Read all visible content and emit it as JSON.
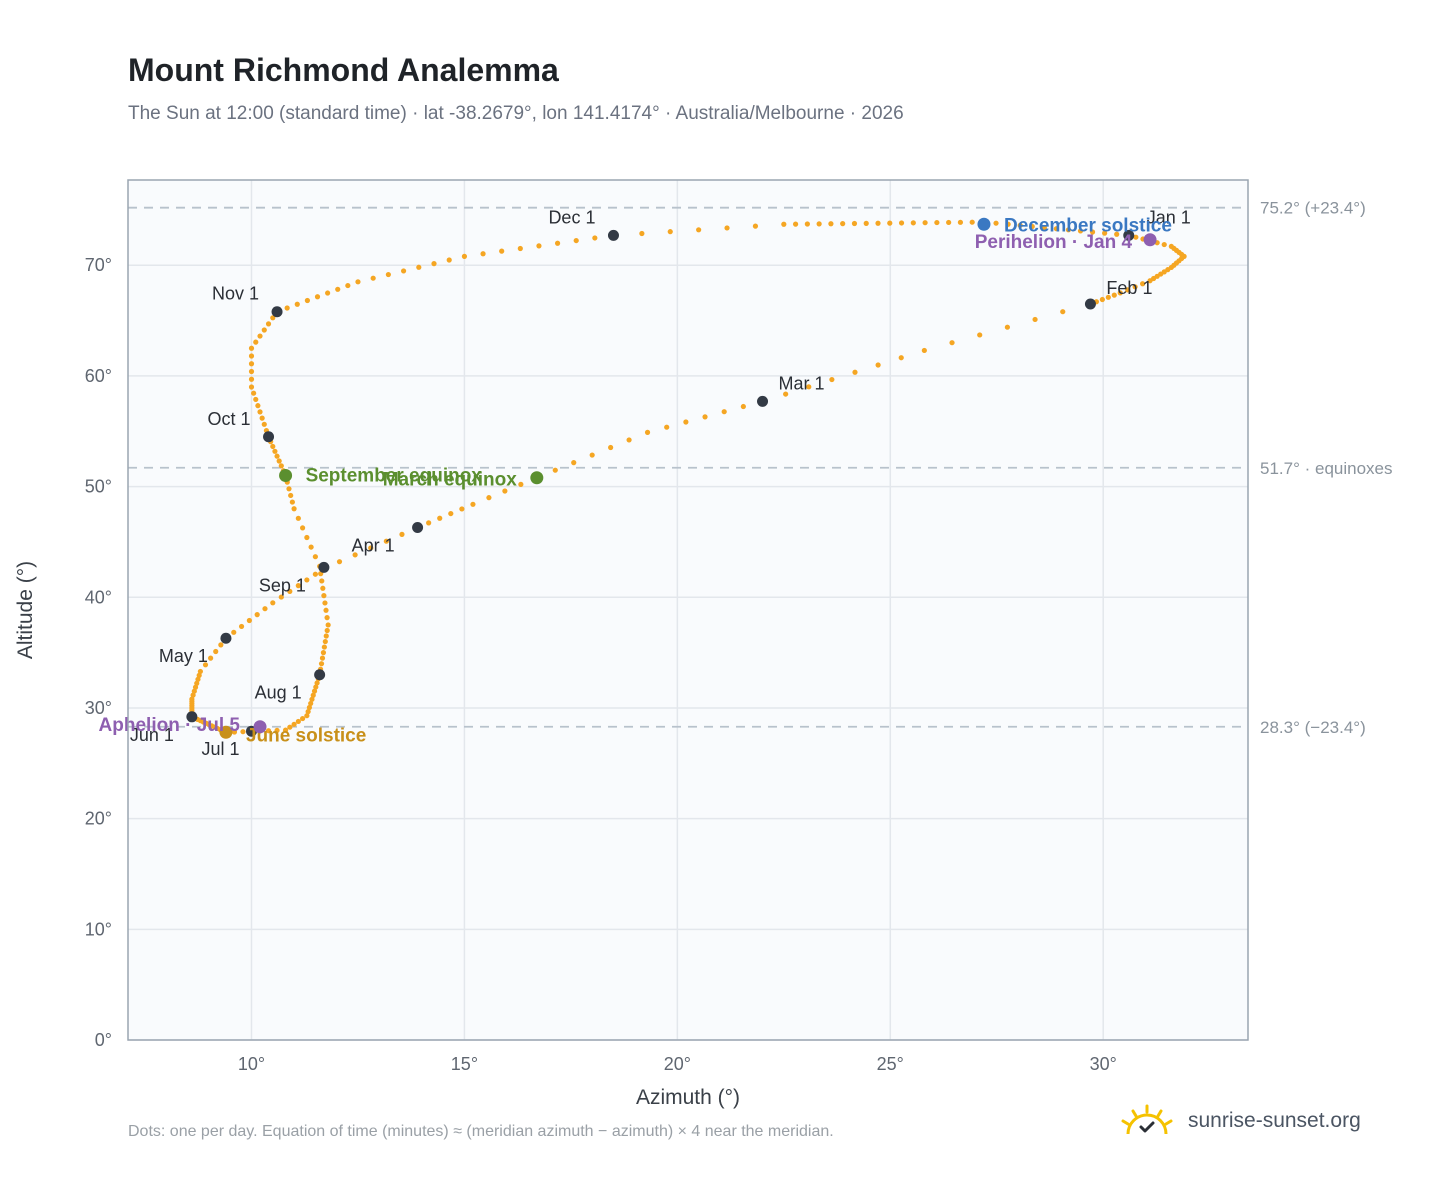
{
  "header": {
    "title": "Mount Richmond Analemma",
    "subtitle": "The Sun at 12:00 (standard time) · lat -38.2679°, lon 141.4174° · Australia/Melbourne · 2026"
  },
  "footer": {
    "note": "Dots: one per day. Equation of time (minutes) ≈ (meridian azimuth − azimuth) × 4 near the meridian.",
    "brand": "sunrise-sunset.org",
    "brand_icon": "sun-logo-icon"
  },
  "colors": {
    "path": "#f5a623",
    "month_marker": "#333a45",
    "equinox": "#5b8f2f",
    "june_solstice": "#c8901a",
    "december_solstice": "#3a78c2",
    "perihelion_aphelion": "#8e5fb0",
    "grid": "#e3e7ec",
    "plot_bg": "#f9fbfd",
    "reference_line": "#b8c2cc",
    "brand": "#f5c200"
  },
  "chart_data": {
    "type": "scatter",
    "xlabel": "Azimuth (°)",
    "ylabel": "Altitude (°)",
    "xlim": [
      7.1,
      33.4
    ],
    "ylim": [
      0,
      77.7
    ],
    "xticks": [
      10,
      15,
      20,
      25,
      30
    ],
    "xtick_labels": [
      "10°",
      "15°",
      "20°",
      "25°",
      "30°"
    ],
    "yticks": [
      0,
      10,
      20,
      30,
      40,
      50,
      60,
      70
    ],
    "ytick_labels": [
      "0°",
      "10°",
      "20°",
      "30°",
      "40°",
      "50°",
      "60°",
      "70°"
    ],
    "grid": true,
    "reference_lines": [
      {
        "y": 75.2,
        "label": "75.2° (+23.4°)"
      },
      {
        "y": 51.7,
        "label": "51.7° · equinoxes"
      },
      {
        "y": 28.3,
        "label": "28.3° (−23.4°)"
      }
    ],
    "daily_path": {
      "series": "one dot per day",
      "keypoints": [
        [
          30.6,
          72.7
        ],
        [
          31.6,
          71.7
        ],
        [
          31.9,
          70.8
        ],
        [
          31.6,
          69.8
        ],
        [
          31.1,
          68.6
        ],
        [
          30.4,
          67.5
        ],
        [
          29.7,
          66.5
        ],
        [
          25.8,
          62.3
        ],
        [
          22.0,
          57.7
        ],
        [
          19.3,
          54.9
        ],
        [
          16.7,
          50.8
        ],
        [
          15.2,
          48.4
        ],
        [
          13.9,
          46.3
        ],
        [
          11.7,
          42.6
        ],
        [
          10.5,
          39.5
        ],
        [
          9.4,
          36.3
        ],
        [
          8.8,
          33.3
        ],
        [
          8.6,
          30.8
        ],
        [
          8.6,
          29.2
        ],
        [
          9.4,
          27.8
        ],
        [
          10.8,
          28.0
        ],
        [
          11.3,
          29.3
        ],
        [
          11.6,
          33.0
        ],
        [
          11.8,
          37.5
        ],
        [
          11.6,
          42.8
        ],
        [
          11.0,
          48.0
        ],
        [
          10.8,
          51.0
        ],
        [
          10.4,
          54.5
        ],
        [
          10.0,
          59.0
        ],
        [
          10.0,
          62.5
        ],
        [
          10.6,
          65.8
        ],
        [
          12.5,
          68.5
        ],
        [
          15.0,
          70.8
        ],
        [
          18.5,
          72.7
        ],
        [
          22.5,
          73.7
        ],
        [
          27.2,
          73.9
        ],
        [
          30.6,
          72.7
        ]
      ],
      "segment_days": [
        6,
        5,
        5,
        6,
        4,
        5,
        6,
        7,
        6,
        6,
        4,
        5,
        6,
        6,
        6,
        5,
        7,
        8,
        12,
        7,
        5,
        10,
        9,
        8,
        6,
        5,
        8,
        8,
        5,
        6,
        8,
        7,
        8,
        6,
        17,
        12
      ]
    },
    "month_markers": [
      {
        "label": "Jan 1",
        "x": 30.6,
        "y": 72.7
      },
      {
        "label": "Feb 1",
        "x": 29.7,
        "y": 66.5
      },
      {
        "label": "Mar 1",
        "x": 22.0,
        "y": 57.7
      },
      {
        "label": "Apr 1",
        "x": 13.9,
        "y": 46.3
      },
      {
        "label": "May 1",
        "x": 9.4,
        "y": 36.3
      },
      {
        "label": "Jun 1",
        "x": 8.6,
        "y": 29.2
      },
      {
        "label": "Jul 1",
        "x": 10.0,
        "y": 27.9
      },
      {
        "label": "Aug 1",
        "x": 11.6,
        "y": 33.0
      },
      {
        "label": "Sep 1",
        "x": 11.7,
        "y": 42.7
      },
      {
        "label": "Oct 1",
        "x": 10.4,
        "y": 54.5
      },
      {
        "label": "Nov 1",
        "x": 10.6,
        "y": 65.8
      },
      {
        "label": "Dec 1",
        "x": 18.5,
        "y": 72.7
      }
    ],
    "events": [
      {
        "label": "December solstice",
        "x": 27.2,
        "y": 73.7,
        "kind": "december_solstice"
      },
      {
        "label": "Perihelion · Jan 4",
        "x": 31.1,
        "y": 72.3,
        "kind": "perihelion_aphelion"
      },
      {
        "label": "March equinox",
        "x": 16.7,
        "y": 50.8,
        "kind": "equinox"
      },
      {
        "label": "September equinox",
        "x": 10.8,
        "y": 51.0,
        "kind": "equinox"
      },
      {
        "label": "June solstice",
        "x": 9.4,
        "y": 27.8,
        "kind": "june_solstice"
      },
      {
        "label": "Aphelion · Jul 5",
        "x": 10.2,
        "y": 28.3,
        "kind": "perihelion_aphelion"
      }
    ]
  }
}
